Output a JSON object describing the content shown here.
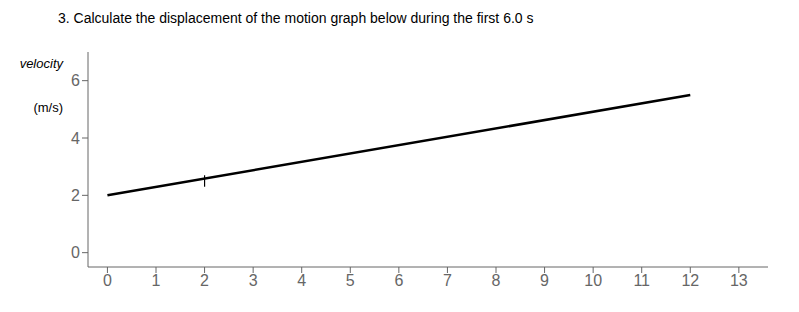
{
  "chart_data": {
    "type": "line",
    "title": "3.   Calculate the displacement of the motion graph below during the first 6.0 s",
    "ylabel": "velocity",
    "annotations": [
      "(m/s)"
    ],
    "xlim": [
      -0.4,
      13.6
    ],
    "xticks": [
      0,
      1,
      2,
      3,
      4,
      5,
      6,
      7,
      8,
      9,
      10,
      11,
      12,
      13
    ],
    "ylim": [
      -0.5,
      7.0
    ],
    "yticks": [
      0,
      2,
      4,
      6
    ],
    "grid": false,
    "series": [
      {
        "color": "#000000",
        "x": [
          0,
          12
        ],
        "values": [
          2,
          5.5
        ]
      },
      {
        "color": "#000000",
        "x": [
          2,
          2
        ],
        "values": [
          2.3,
          2.7
        ]
      }
    ]
  }
}
